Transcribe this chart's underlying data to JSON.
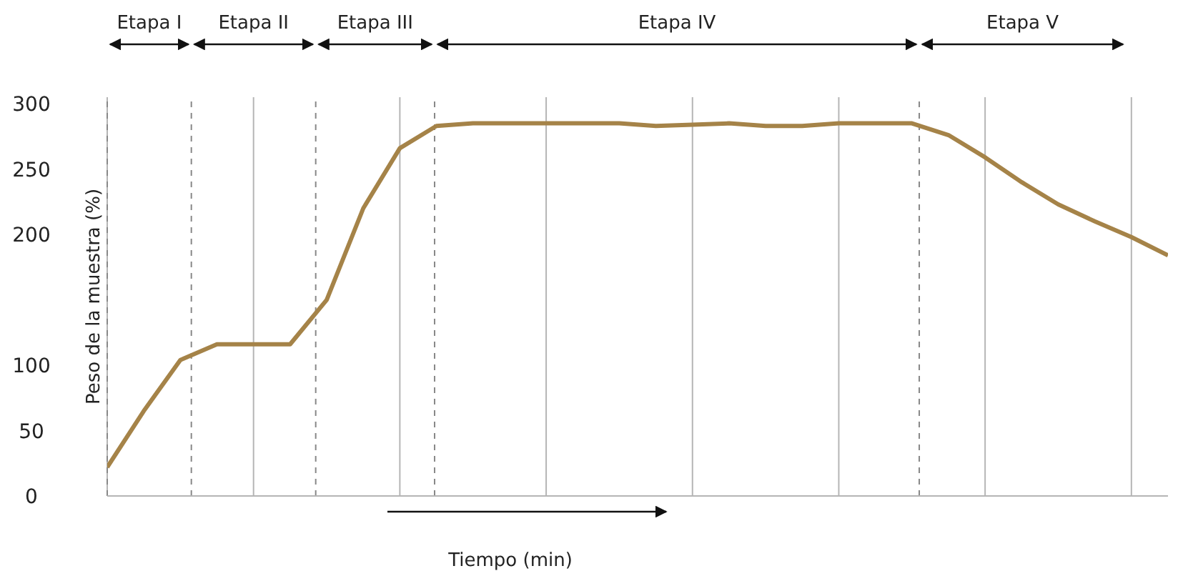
{
  "chart_data": {
    "type": "line",
    "xlabel": "Tiempo (min)",
    "ylabel": "Peso de la muestra (%)",
    "categories": [
      null,
      null,
      null,
      null,
      null,
      null,
      null,
      null,
      null,
      null,
      null,
      null,
      null,
      null,
      null,
      null,
      null,
      null,
      null,
      null,
      null,
      null,
      null,
      null,
      null,
      null,
      null,
      null,
      null,
      null
    ],
    "series": [
      {
        "color": "#a58348",
        "values": [
          22,
          65,
          104,
          116,
          116,
          116,
          150,
          220,
          266,
          283,
          285,
          285,
          285,
          285,
          285,
          283,
          284,
          285,
          283,
          283,
          285,
          285,
          285,
          276,
          259,
          240,
          223,
          210,
          198,
          184
        ]
      }
    ],
    "ylim": [
      0,
      305
    ],
    "yticks": [
      0,
      50,
      100,
      200,
      250,
      300
    ],
    "annotations": [
      "Etapa I",
      "Etapa II",
      "Etapa III",
      "Etapa IV",
      "Etapa V"
    ],
    "grid": "x",
    "tick_labels": "y",
    "marker": "none",
    "line_style": "solid"
  }
}
